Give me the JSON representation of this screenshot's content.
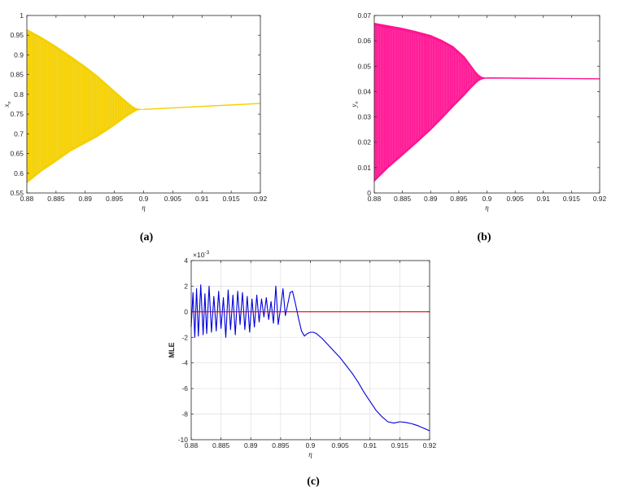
{
  "colors": {
    "a": "#F5D000",
    "b": "#FF1493",
    "c_line": "#0000DD",
    "c_zero": "#DD0000"
  },
  "chart_data": [
    {
      "type": "area",
      "panel_label": "(a)",
      "xlabel": "η",
      "ylabel": "x_n",
      "ylabel_base": "x",
      "ylabel_sub": "n",
      "xlim": [
        0.88,
        0.92
      ],
      "ylim": [
        0.55,
        1
      ],
      "xticks": [
        "0.88",
        "0.885",
        "0.89",
        "0.895",
        "0.9",
        "0.905",
        "0.91",
        "0.915",
        "0.92"
      ],
      "yticks": [
        "0.55",
        "0.6",
        "0.65",
        "0.7",
        "0.75",
        "0.8",
        "0.85",
        "0.9",
        "0.95",
        "1"
      ],
      "grid": false,
      "envelope": {
        "x": [
          0.88,
          0.8825,
          0.885,
          0.8875,
          0.89,
          0.892,
          0.894,
          0.896,
          0.897,
          0.898,
          0.8985,
          0.899,
          0.8995,
          0.9,
          0.92
        ],
        "upper": [
          0.965,
          0.945,
          0.922,
          0.897,
          0.871,
          0.848,
          0.822,
          0.796,
          0.783,
          0.771,
          0.766,
          0.7635,
          0.7625,
          0.762,
          0.777
        ],
        "lower": [
          0.575,
          0.605,
          0.63,
          0.656,
          0.676,
          0.692,
          0.711,
          0.732,
          0.743,
          0.752,
          0.757,
          0.76,
          0.7615,
          0.762,
          0.777
        ]
      }
    },
    {
      "type": "area",
      "panel_label": "(b)",
      "xlabel": "η",
      "ylabel": "y_n",
      "ylabel_base": "y",
      "ylabel_sub": "n",
      "xlim": [
        0.88,
        0.92
      ],
      "ylim": [
        0,
        0.07
      ],
      "xticks": [
        "0.88",
        "0.885",
        "0.89",
        "0.895",
        "0.9",
        "0.905",
        "0.91",
        "0.915",
        "0.92"
      ],
      "yticks": [
        "0",
        "0.01",
        "0.02",
        "0.03",
        "0.04",
        "0.05",
        "0.06",
        "0.07"
      ],
      "grid": false,
      "envelope": {
        "x": [
          0.88,
          0.8825,
          0.885,
          0.8875,
          0.89,
          0.892,
          0.894,
          0.896,
          0.897,
          0.898,
          0.8985,
          0.899,
          0.8995,
          0.9,
          0.92
        ],
        "upper": [
          0.067,
          0.066,
          0.065,
          0.0637,
          0.0622,
          0.0603,
          0.0578,
          0.0538,
          0.0508,
          0.0478,
          0.0466,
          0.0458,
          0.0455,
          0.0454,
          0.045
        ],
        "lower": [
          0.0045,
          0.01,
          0.0148,
          0.0197,
          0.0248,
          0.0293,
          0.034,
          0.0385,
          0.041,
          0.0432,
          0.0442,
          0.0448,
          0.0451,
          0.0452,
          0.045
        ]
      }
    },
    {
      "type": "line",
      "panel_label": "(c)",
      "xlabel": "η",
      "ylabel": "MLE",
      "exponent_label": "×10",
      "exponent_power": "-3",
      "xlim": [
        0.88,
        0.92
      ],
      "ylim": [
        -10,
        4
      ],
      "xticks": [
        "0.88",
        "0.885",
        "0.89",
        "0.895",
        "0.9",
        "0.905",
        "0.91",
        "0.915",
        "0.92"
      ],
      "yticks": [
        "-10",
        "-8",
        "-6",
        "-4",
        "-2",
        "0",
        "2",
        "4"
      ],
      "grid": true,
      "series": [
        {
          "color": "#0000DD",
          "x": [
            0.88,
            0.8803,
            0.8806,
            0.8809,
            0.8812,
            0.8816,
            0.882,
            0.8823,
            0.8826,
            0.883,
            0.8834,
            0.8838,
            0.8842,
            0.8846,
            0.885,
            0.8854,
            0.8858,
            0.8862,
            0.8866,
            0.887,
            0.8874,
            0.8878,
            0.8882,
            0.8886,
            0.889,
            0.8894,
            0.8898,
            0.8902,
            0.8906,
            0.891,
            0.8914,
            0.8918,
            0.8922,
            0.8926,
            0.893,
            0.8934,
            0.8938,
            0.8942,
            0.8946,
            0.895,
            0.8954,
            0.8958,
            0.8962,
            0.8966,
            0.897,
            0.8975,
            0.898,
            0.8985,
            0.899,
            0.8995,
            0.9,
            0.9005,
            0.901,
            0.902,
            0.903,
            0.904,
            0.905,
            0.906,
            0.907,
            0.908,
            0.909,
            0.91,
            0.911,
            0.912,
            0.913,
            0.914,
            0.9145,
            0.915,
            0.916,
            0.917,
            0.918,
            0.919,
            0.92
          ],
          "y": [
            -1.2,
            1.5,
            -2.0,
            1.8,
            -1.9,
            2.1,
            -1.8,
            1.4,
            -1.7,
            2.0,
            -1.6,
            1.2,
            -1.5,
            1.6,
            -1.3,
            1.1,
            -2.0,
            1.7,
            -1.4,
            1.3,
            -1.8,
            1.6,
            -1.0,
            1.5,
            -1.4,
            1.2,
            -1.6,
            1.0,
            -1.2,
            1.3,
            -0.8,
            1.0,
            -0.4,
            1.1,
            -0.6,
            0.8,
            -0.9,
            2.0,
            -1.0,
            0.3,
            1.8,
            -0.3,
            0.6,
            1.5,
            1.6,
            0.6,
            -0.5,
            -1.5,
            -1.9,
            -1.7,
            -1.6,
            -1.6,
            -1.7,
            -2.1,
            -2.6,
            -3.1,
            -3.6,
            -4.2,
            -4.8,
            -5.5,
            -6.3,
            -7.0,
            -7.7,
            -8.2,
            -8.6,
            -8.7,
            -8.65,
            -8.6,
            -8.65,
            -8.75,
            -8.9,
            -9.1,
            -9.3
          ]
        },
        {
          "color": "#DD0000",
          "x": [
            0.88,
            0.92
          ],
          "y": [
            0,
            0
          ]
        }
      ]
    }
  ]
}
